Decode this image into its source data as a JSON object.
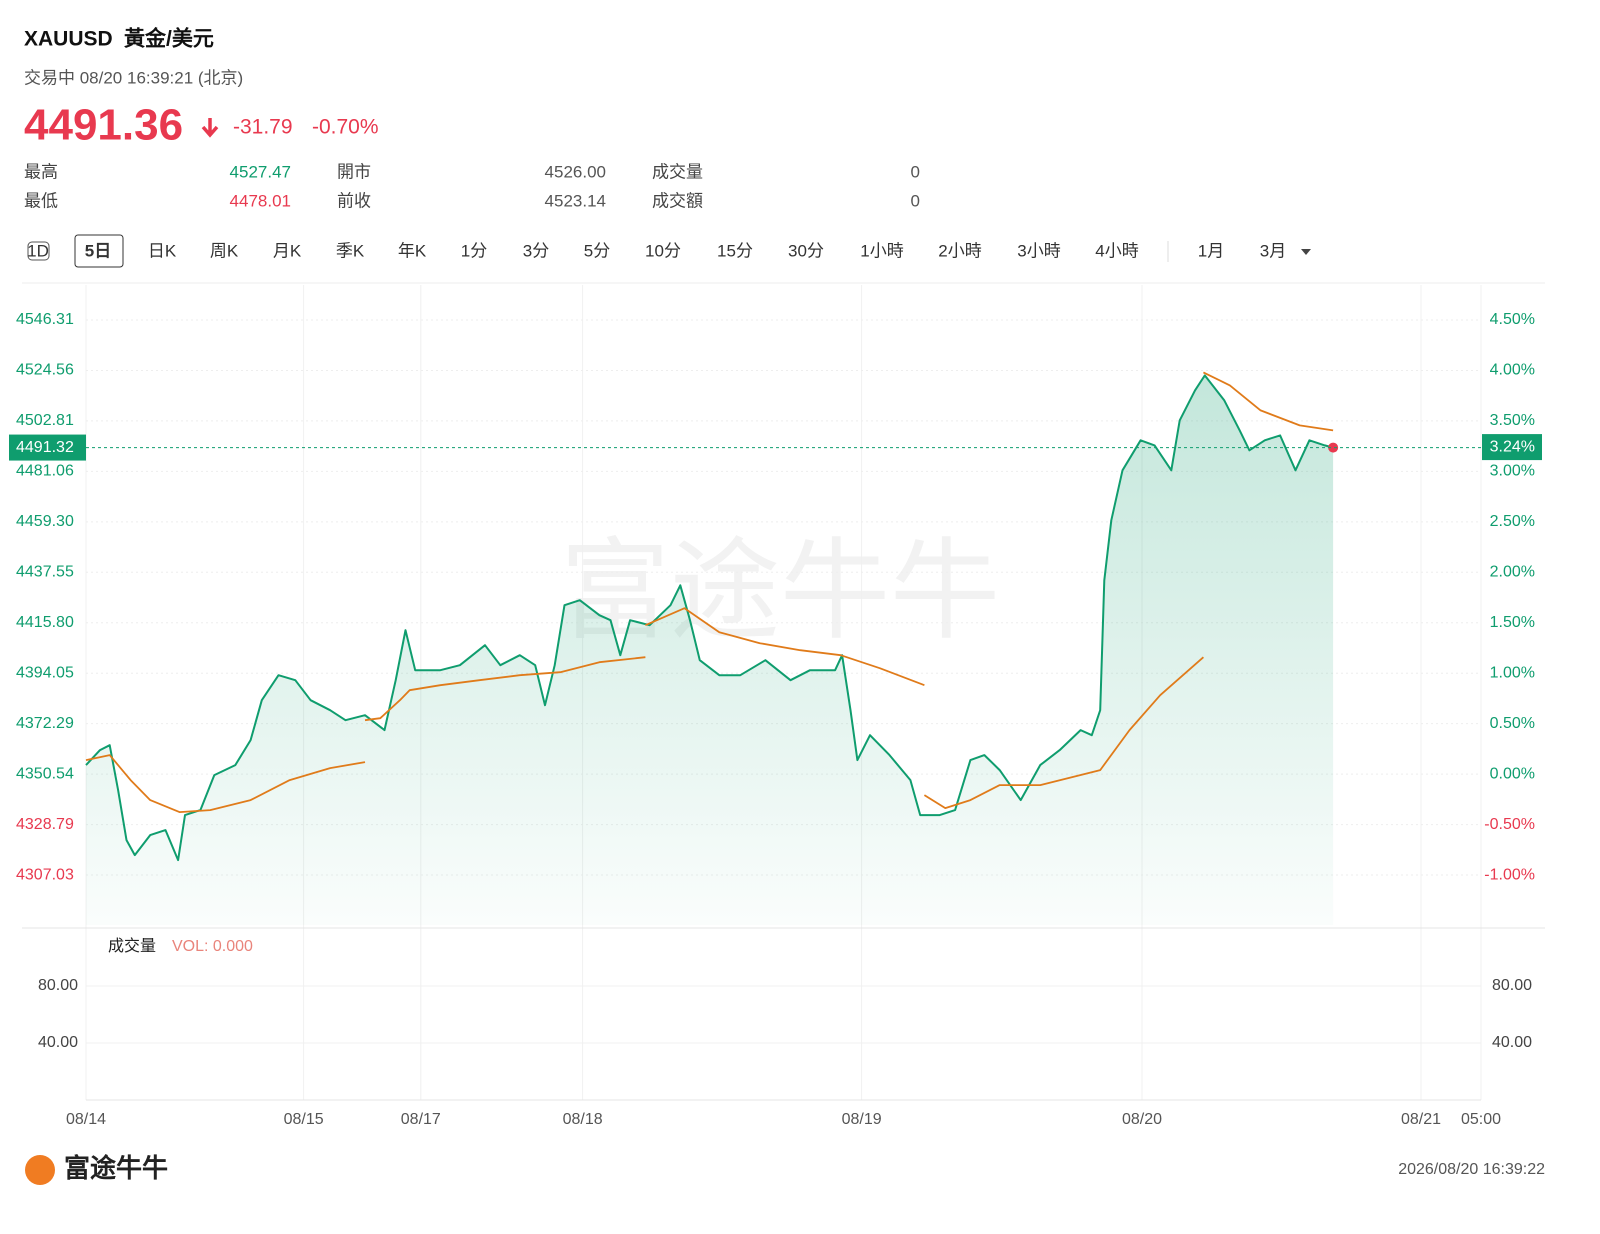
{
  "header": {
    "symbol": "XAUUSD",
    "name": "黃金/美元",
    "status": "交易中 08/20 16:39:21 (北京)",
    "price": "4491.36",
    "change": "-31.79",
    "change_pct": "-0.70%"
  },
  "stats": [
    [
      "最高",
      "4527.47",
      "開市",
      "4526.00",
      "成交量",
      "0"
    ],
    [
      "最低",
      "4478.01",
      "前收",
      "4523.14",
      "成交額",
      "0"
    ]
  ],
  "tabs": [
    "1D",
    "5日",
    "日K",
    "周K",
    "月K",
    "季K",
    "年K",
    "1分",
    "3分",
    "5分",
    "10分",
    "15分",
    "30分",
    "1小時",
    "2小時",
    "3小時",
    "4小時",
    "1月",
    "3月"
  ],
  "selected_tab": "5日",
  "watermark": "富途牛牛",
  "chart_data": {
    "type": "line",
    "x": [
      0,
      1.0,
      1.7,
      2.3,
      2.9,
      3.5,
      4.6,
      5.7,
      6.6,
      7.1,
      8.2,
      9.2,
      10.7,
      11.8,
      12.6,
      13.8,
      15.0,
      16.1,
      17.5,
      18.6,
      20.0,
      21.4,
      22.2,
      22.9,
      23.6,
      25.4,
      26.8,
      28.6,
      29.7,
      31.1,
      32.2,
      32.9,
      33.6,
      34.3,
      35.4,
      36.8,
      37.6,
      38.3,
      39.0,
      40.4,
      41.9,
      42.6,
      43.3,
      44.0,
      45.4,
      46.9,
      48.7,
      50.5,
      51.9,
      53.7,
      54.2,
      54.8,
      55.3,
      56.2,
      57.6,
      59.1,
      59.8,
      61.2,
      62.3,
      63.4,
      64.4,
      65.5,
      67.0,
      68.4,
      69.8,
      71.3,
      72.1,
      72.7,
      73.0,
      73.5,
      74.3,
      75.6,
      76.6,
      77.8,
      78.4,
      79.5,
      80.2,
      81.6,
      82.7,
      83.4,
      84.5,
      85.6,
      86.7,
      87.7,
      88.8,
      89.4
    ],
    "series": [
      {
        "color": "#0f9d6e",
        "values": [
          4354.42,
          4360.88,
          4363.03,
          4343.65,
          4322.11,
          4315.65,
          4324.26,
          4326.42,
          4313.49,
          4332.88,
          4335.03,
          4350.11,
          4354.42,
          4365.19,
          4382.42,
          4393.19,
          4391.04,
          4382.42,
          4378.11,
          4373.8,
          4375.96,
          4369.5,
          4391.04,
          4412.58,
          4395.34,
          4395.34,
          4397.5,
          4406.11,
          4397.5,
          4401.81,
          4397.5,
          4380.27,
          4397.5,
          4423.35,
          4425.5,
          4419.04,
          4416.88,
          4401.81,
          4416.88,
          4414.73,
          4423.35,
          4431.96,
          4416.88,
          4399.65,
          4393.19,
          4393.19,
          4399.65,
          4391.04,
          4395.34,
          4395.34,
          4401.81,
          4378.11,
          4356.57,
          4367.34,
          4358.73,
          4347.96,
          4332.88,
          4332.88,
          4335.03,
          4356.57,
          4358.73,
          4352.26,
          4339.34,
          4354.42,
          4360.88,
          4369.5,
          4367.34,
          4378.11,
          4434.12,
          4459.96,
          4481.5,
          4494.43,
          4492.27,
          4481.5,
          4503.04,
          4515.97,
          4522.43,
          4511.66,
          4498.74,
          4490.12,
          4494.43,
          4496.58,
          4481.5,
          4494.43,
          4492.27,
          4491.32
        ]
      },
      {
        "color": "#e07b1a",
        "x": [
          0,
          1.7,
          3.2,
          4.6,
          6.7,
          8.9,
          11.8,
          14.6,
          17.5,
          20.0,
          20.0,
          20.0,
          21.1,
          22.5,
          23.2,
          25.4,
          28.2,
          31.1,
          34.0,
          36.8,
          40.1,
          40.1,
          40.1,
          42.9,
          45.4,
          48.3,
          51.2,
          54.1,
          56.9,
          60.1,
          60.1,
          60.1,
          61.6,
          63.4,
          65.5,
          68.4,
          72.7,
          74.8,
          77.0,
          80.1,
          80.1,
          80.1,
          82.0,
          84.2,
          87.0,
          89.4
        ],
        "values": [
          4356.57,
          4358.73,
          4347.96,
          4339.34,
          4334.17,
          4335.03,
          4339.34,
          4347.96,
          4353.12,
          4355.71,
          null,
          4373.8,
          4374.66,
          4382.42,
          4386.73,
          4388.88,
          4391.04,
          4393.19,
          4394.48,
          4398.79,
          4400.94,
          null,
          4414.73,
          4422.05,
          4411.71,
          4406.97,
          4403.96,
          4401.81,
          4396.2,
          4388.88,
          null,
          4341.49,
          4335.89,
          4339.34,
          4345.8,
          4345.8,
          4352.26,
          4369.5,
          4384.57,
          4400.94,
          null,
          4523.72,
          4518.12,
          4507.35,
          4500.89,
          4498.74
        ]
      }
    ],
    "xlim": [
      0,
      100
    ],
    "xticks": [
      {
        "value": 0,
        "label": "08/14"
      },
      {
        "value": 15.6,
        "label": "08/15"
      },
      {
        "value": 24.0,
        "label": "08/17"
      },
      {
        "value": 35.6,
        "label": "08/18"
      },
      {
        "value": 55.6,
        "label": "08/19"
      },
      {
        "value": 75.7,
        "label": "08/20"
      },
      {
        "value": 95.7,
        "label": "08/21"
      },
      {
        "value": 100,
        "label": "05:00"
      }
    ],
    "ylim": [
      4285.5,
      4561.4
    ],
    "yticks": [
      4546.31,
      4524.56,
      4502.81,
      4481.06,
      {
        "value": 4459.3,
        "label": "4459.30"
      },
      4437.55,
      {
        "value": 4415.8,
        "label": "4415.80"
      },
      4394.05,
      4372.29,
      4350.54,
      4328.79,
      4307.03
    ],
    "y2lim": [
      -1.495,
      4.846
    ],
    "y2ticks": [
      {
        "value": 4.5,
        "label": "4.50%"
      },
      {
        "value": 4.0,
        "label": "4.00%"
      },
      {
        "value": 3.5,
        "label": "3.50%"
      },
      {
        "value": 3.0,
        "label": "3.00%"
      },
      {
        "value": 2.5,
        "label": "2.50%"
      },
      {
        "value": 2.0,
        "label": "2.00%"
      },
      {
        "value": 1.5,
        "label": "1.50%"
      },
      {
        "value": 1.0,
        "label": "1.00%"
      },
      {
        "value": 0.5,
        "label": "0.50%"
      },
      {
        "value": 0,
        "label": "0.00%"
      },
      {
        "value": -0.5,
        "label": "-0.50%"
      },
      {
        "value": -1.0,
        "label": "-1.00%"
      }
    ],
    "last_price": 4491.32,
    "last_pct": {
      "value": 3.24,
      "label": "3.24%"
    },
    "grid": true
  },
  "volume": {
    "title": "成交量",
    "indicator": "VOL: 0.000",
    "ylim": [
      0,
      119.3
    ],
    "yticks": [
      {
        "value": 80,
        "label": "80.00"
      },
      {
        "value": 40,
        "label": "40.00"
      }
    ]
  },
  "footer": {
    "brand": "富途牛牛",
    "timestamp": "2026/08/20 16:39:22"
  }
}
